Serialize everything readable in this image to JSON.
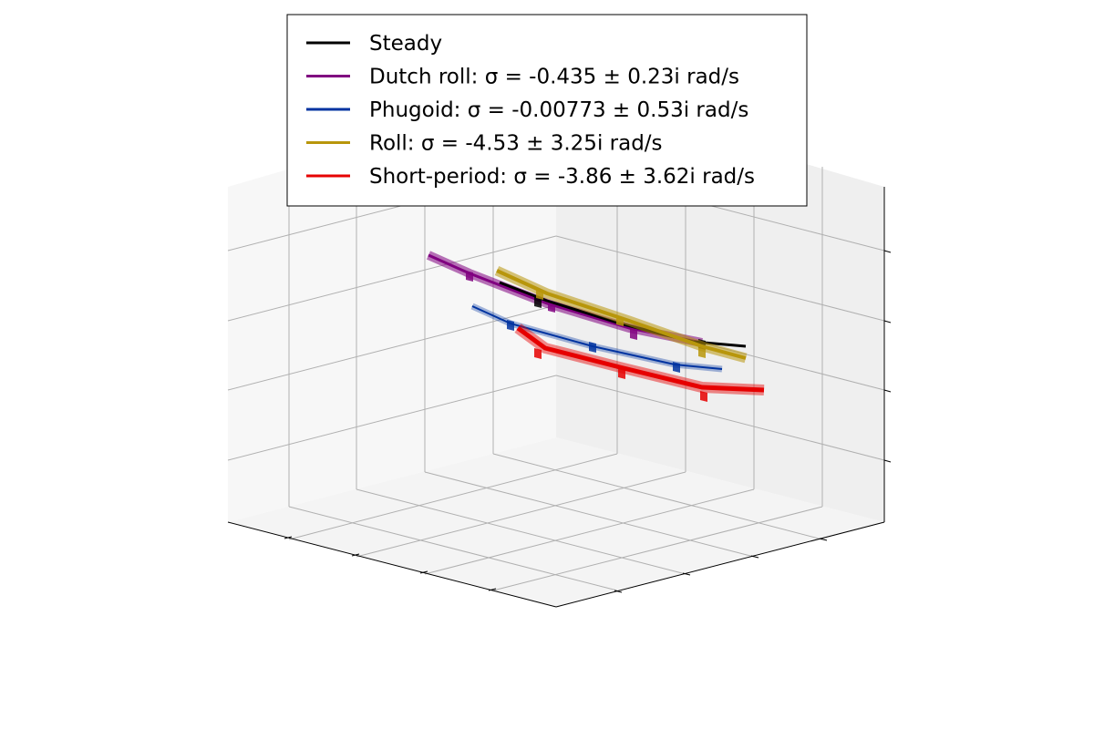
{
  "chart_data": {
    "type": "line",
    "projection": "3d",
    "axis_tick_labels": "none",
    "grid": true,
    "legend_position": "top",
    "series": [
      {
        "name": "Steady",
        "color": "#000000"
      },
      {
        "name": "Dutch roll: σ = -0.435 ± 0.23i rad/s",
        "color": "#800080"
      },
      {
        "name": "Phugoid: σ = -0.00773 ± 0.53i rad/s",
        "color": "#0033a0"
      },
      {
        "name": "Roll: σ = -4.53 ± 3.25i rad/s",
        "color": "#b8960b"
      },
      {
        "name": "Short-period: σ = -3.86 ± 3.62i rad/s",
        "color": "#e60000"
      }
    ]
  }
}
